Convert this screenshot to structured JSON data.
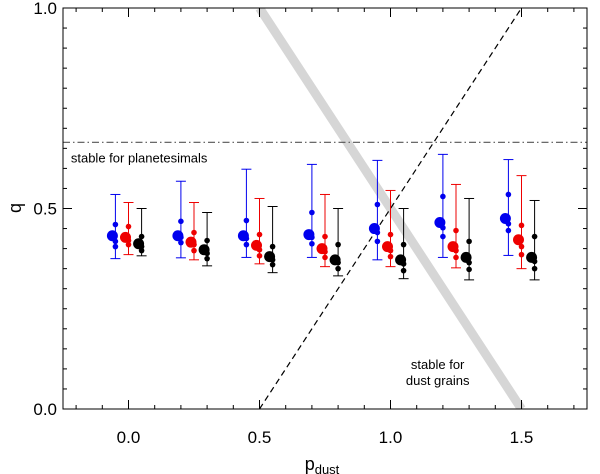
{
  "chart_data": {
    "type": "scatter",
    "title": "",
    "xlabel": "p",
    "xlabel_subscript": "dust",
    "ylabel": "q",
    "xlim": [
      -0.25,
      1.75
    ],
    "ylim": [
      0.0,
      1.0
    ],
    "x_ticks": [
      {
        "value": 0.0,
        "label": "0.0"
      },
      {
        "value": 0.5,
        "label": "0.5"
      },
      {
        "value": 1.0,
        "label": "1.0"
      },
      {
        "value": 1.5,
        "label": "1.5"
      }
    ],
    "y_ticks": [
      {
        "value": 0.0,
        "label": "0.0"
      },
      {
        "value": 0.5,
        "label": "0.5"
      },
      {
        "value": 1.0,
        "label": "1.0"
      }
    ],
    "x_minor_step": 0.1,
    "y_minor_step": 0.05,
    "grid": false,
    "reference_lines": [
      {
        "name": "planetesimal-stability-line",
        "style": "dashdot",
        "color": "#555555",
        "points": [
          [
            -0.25,
            0.665
          ],
          [
            1.75,
            0.665
          ]
        ]
      },
      {
        "name": "dust-stability-line",
        "style": "dashed",
        "color": "#000000",
        "points": [
          [
            0.5,
            0.0
          ],
          [
            1.5,
            1.0
          ]
        ]
      },
      {
        "name": "gray-band",
        "style": "band",
        "color": "#d6d6d6",
        "points": [
          [
            0.5,
            1.0
          ],
          [
            1.5,
            0.0
          ]
        ]
      }
    ],
    "annotations": [
      {
        "name": "annotation-stable-planetesimals",
        "lines": [
          "stable for planetesimals"
        ],
        "x": -0.22,
        "y": 0.615,
        "anchor": "start"
      },
      {
        "name": "annotation-stable-dust",
        "lines": [
          "stable for",
          "dust grains"
        ],
        "x": 1.18,
        "y": 0.1,
        "anchor": "middle"
      }
    ],
    "series": [
      {
        "name": "blue",
        "color": "#0000ee",
        "offset": -0.05,
        "points": [
          {
            "x": 0.0,
            "y": 0.432,
            "low": 0.375,
            "high": 0.535,
            "inner": [
              0.405,
              0.418,
              0.46
            ]
          },
          {
            "x": 0.25,
            "y": 0.432,
            "low": 0.377,
            "high": 0.568,
            "inner": [
              0.415,
              0.428,
              0.468
            ]
          },
          {
            "x": 0.5,
            "y": 0.432,
            "low": 0.378,
            "high": 0.598,
            "inner": [
              0.41,
              0.425,
              0.47
            ]
          },
          {
            "x": 0.75,
            "y": 0.435,
            "low": 0.378,
            "high": 0.61,
            "inner": [
              0.412,
              0.428,
              0.49
            ]
          },
          {
            "x": 1.0,
            "y": 0.45,
            "low": 0.372,
            "high": 0.62,
            "inner": [
              0.418,
              0.44,
              0.51
            ]
          },
          {
            "x": 1.25,
            "y": 0.465,
            "low": 0.378,
            "high": 0.635,
            "inner": [
              0.43,
              0.452,
              0.53
            ]
          },
          {
            "x": 1.5,
            "y": 0.475,
            "low": 0.383,
            "high": 0.622,
            "inner": [
              0.445,
              0.462,
              0.535
            ]
          }
        ]
      },
      {
        "name": "red",
        "color": "#ee0000",
        "offset": 0.0,
        "points": [
          {
            "x": 0.0,
            "y": 0.428,
            "low": 0.385,
            "high": 0.515,
            "inner": [
              0.41,
              0.42,
              0.455
            ]
          },
          {
            "x": 0.25,
            "y": 0.416,
            "low": 0.372,
            "high": 0.515,
            "inner": [
              0.395,
              0.41,
              0.44
            ]
          },
          {
            "x": 0.5,
            "y": 0.408,
            "low": 0.362,
            "high": 0.525,
            "inner": [
              0.382,
              0.397,
              0.435
            ]
          },
          {
            "x": 0.75,
            "y": 0.4,
            "low": 0.355,
            "high": 0.535,
            "inner": [
              0.378,
              0.392,
              0.43
            ]
          },
          {
            "x": 1.0,
            "y": 0.405,
            "low": 0.355,
            "high": 0.545,
            "inner": [
              0.38,
              0.395,
              0.435
            ]
          },
          {
            "x": 1.25,
            "y": 0.405,
            "low": 0.352,
            "high": 0.56,
            "inner": [
              0.378,
              0.395,
              0.445
            ]
          },
          {
            "x": 1.5,
            "y": 0.422,
            "low": 0.35,
            "high": 0.582,
            "inner": [
              0.385,
              0.405,
              0.458
            ]
          }
        ]
      },
      {
        "name": "black",
        "color": "#000000",
        "offset": 0.05,
        "points": [
          {
            "x": 0.0,
            "y": 0.412,
            "low": 0.382,
            "high": 0.5,
            "inner": [
              0.395,
              0.405,
              0.43
            ]
          },
          {
            "x": 0.25,
            "y": 0.397,
            "low": 0.357,
            "high": 0.49,
            "inner": [
              0.375,
              0.388,
              0.42
            ]
          },
          {
            "x": 0.5,
            "y": 0.38,
            "low": 0.34,
            "high": 0.505,
            "inner": [
              0.36,
              0.372,
              0.405
            ]
          },
          {
            "x": 0.75,
            "y": 0.372,
            "low": 0.332,
            "high": 0.5,
            "inner": [
              0.35,
              0.365,
              0.41
            ]
          },
          {
            "x": 1.0,
            "y": 0.372,
            "low": 0.325,
            "high": 0.5,
            "inner": [
              0.345,
              0.362,
              0.41
            ]
          },
          {
            "x": 1.25,
            "y": 0.378,
            "low": 0.322,
            "high": 0.525,
            "inner": [
              0.348,
              0.365,
              0.418
            ]
          },
          {
            "x": 1.5,
            "y": 0.378,
            "low": 0.322,
            "high": 0.52,
            "inner": [
              0.35,
              0.368,
              0.43
            ]
          }
        ]
      }
    ]
  }
}
